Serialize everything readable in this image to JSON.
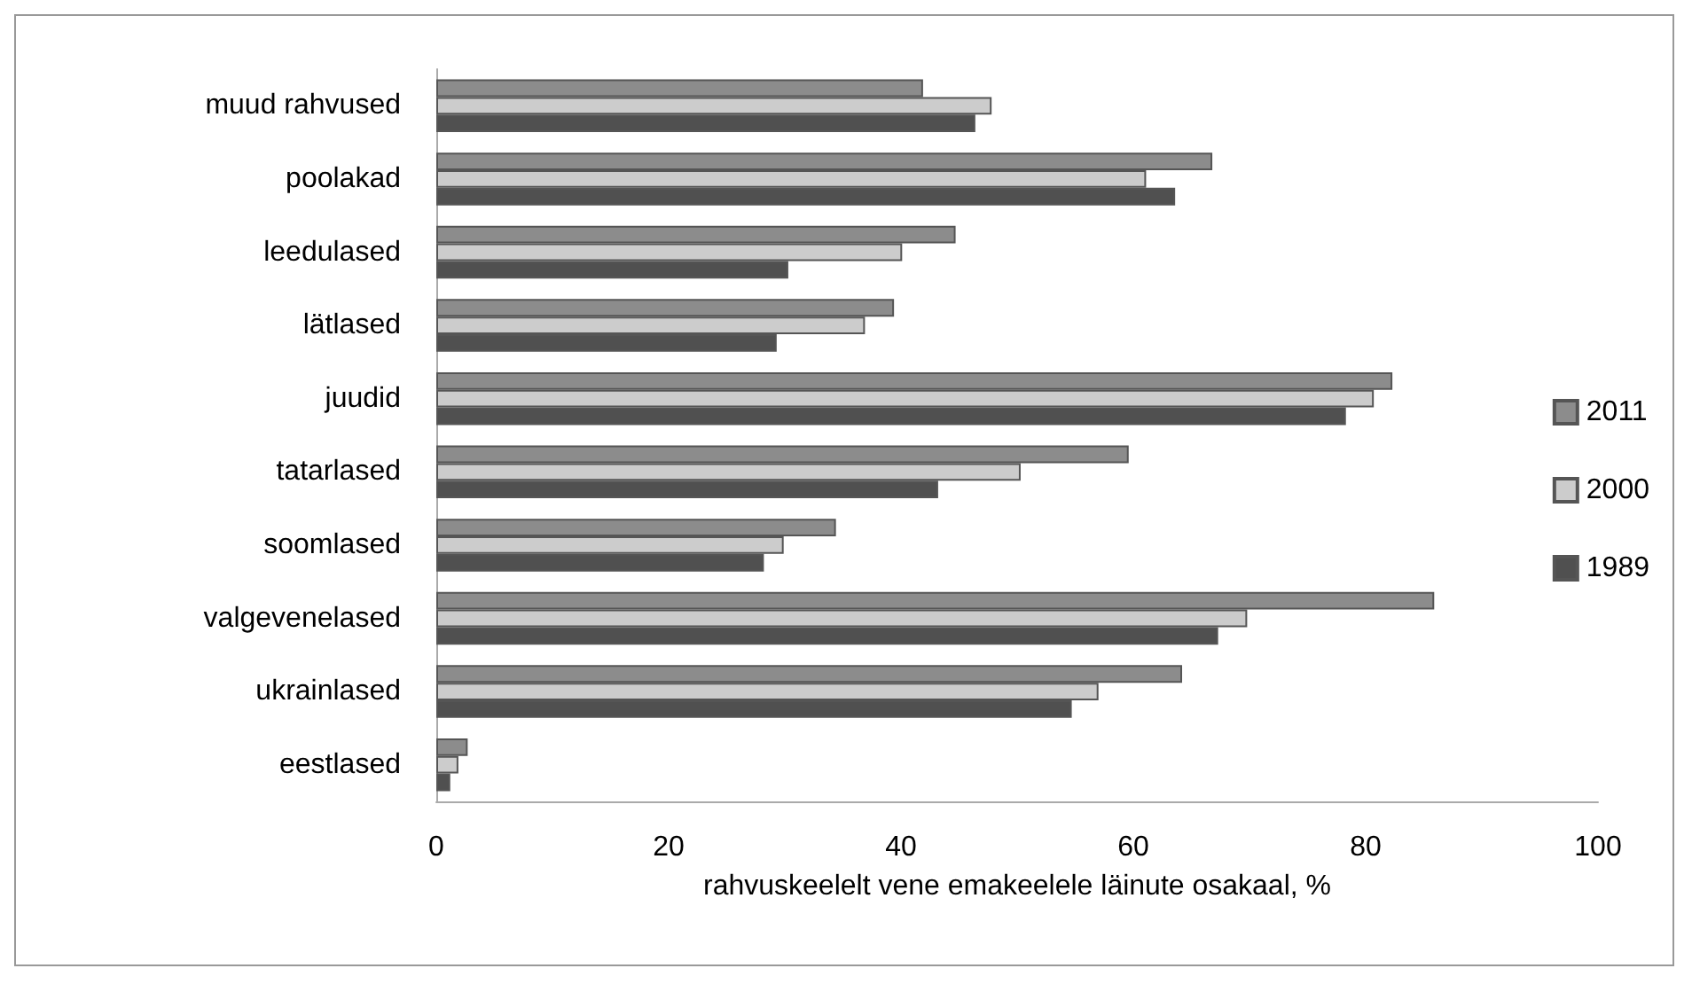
{
  "chart_data": {
    "type": "bar",
    "orientation": "horizontal",
    "xlabel": "rahvuskeelelt vene emakeelele läinute osakaal, %",
    "categories": [
      "muud rahvused",
      "poolakad",
      "leedulased",
      "lätlased",
      "juudid",
      "tatarlased",
      "soomlased",
      "valgevenelased",
      "ukrainlased",
      "eestlased"
    ],
    "series": [
      {
        "name": "2011",
        "color": "#8c8c8c",
        "values": [
          41.9,
          66.8,
          44.7,
          39.4,
          82.3,
          59.6,
          34.4,
          85.9,
          64.2,
          2.7
        ]
      },
      {
        "name": "2000",
        "color": "#cccccc",
        "values": [
          47.8,
          61.1,
          40.1,
          36.9,
          80.7,
          50.3,
          29.9,
          69.8,
          57.0,
          1.9
        ]
      },
      {
        "name": "1989",
        "color": "#505050",
        "values": [
          46.4,
          63.6,
          30.3,
          29.3,
          78.3,
          43.2,
          28.2,
          67.3,
          54.7,
          1.2
        ]
      }
    ],
    "xlim": [
      0,
      100
    ],
    "xticks": [
      0,
      20,
      40,
      60,
      80,
      100
    ],
    "grid": false,
    "legend": "right"
  }
}
